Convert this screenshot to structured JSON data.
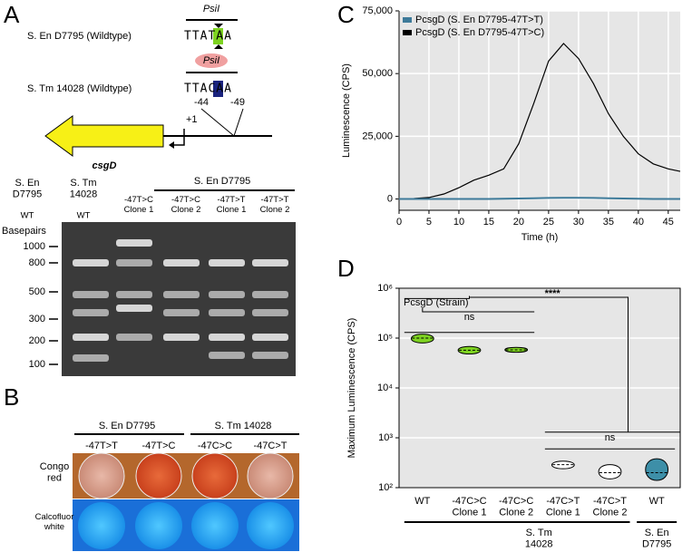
{
  "panel_labels": [
    "A",
    "B",
    "C",
    "D"
  ],
  "panel_a": {
    "enzyme_1": "PsiI",
    "strain_1": "S. En D7795 (Wildtype)",
    "seq_1": "TTATAA",
    "enzyme_2": "PsiI",
    "strain_2": "S. Tm 14028 (Wildtype)",
    "seq_2": "TTACAA",
    "pos_left": "-44",
    "pos_right": "-49",
    "tss": "+1",
    "gene": "csgD"
  },
  "gel": {
    "lanes": [
      "S. En\nD7795",
      "S. Tm\n14028"
    ],
    "lane_sub": [
      "WT",
      "WT"
    ],
    "group": "S. En D7795",
    "clones": [
      "-47T>C\nClone 1",
      "-47T>C\nClone 2",
      "-47T>T\nClone 1",
      "-47T>T\nClone 2"
    ],
    "ylabel": "Basepairs",
    "markers": [
      "1000",
      "800",
      "500",
      "300",
      "200",
      "100"
    ]
  },
  "panel_b": {
    "groups": [
      "S. En D7795",
      "S. Tm 14028"
    ],
    "conditions": [
      "-47T>T",
      "-47T>C",
      "-47C>C",
      "-47C>T"
    ],
    "rows": [
      "Congo\nred",
      "Calcofluor\nwhite"
    ]
  },
  "chart_data": [
    {
      "type": "line",
      "xlabel": "Time (h)",
      "ylabel": "Luminescence (CPS)",
      "x": [
        0,
        2.5,
        5,
        7.5,
        10,
        12.5,
        15,
        17.5,
        20,
        22.5,
        25,
        27.5,
        30,
        32.5,
        35,
        37.5,
        40,
        42.5,
        45,
        47
      ],
      "series": [
        {
          "name": "PcsgD (S. En D7795-47T>T)",
          "color": "#3d7a99",
          "values": [
            0,
            0,
            0,
            0,
            0,
            0,
            0,
            100,
            200,
            300,
            400,
            500,
            500,
            400,
            300,
            200,
            100,
            0,
            0,
            0
          ]
        },
        {
          "name": "PcsgD (S. En D7795-47T>C)",
          "color": "#000000",
          "values": [
            0,
            200,
            600,
            2000,
            4500,
            7500,
            9500,
            12000,
            22000,
            38000,
            55000,
            62000,
            56000,
            46000,
            34000,
            25000,
            18000,
            14000,
            12000,
            11000
          ]
        }
      ],
      "xlim": [
        0,
        47
      ],
      "xticks": [
        0,
        5,
        10,
        15,
        20,
        25,
        30,
        35,
        40,
        45
      ],
      "ylim": [
        -4500,
        75000
      ],
      "yticks": [
        0,
        {
          "value": 25000,
          "label": "25,000"
        },
        {
          "value": 50000,
          "label": "50,000"
        },
        {
          "value": 75000,
          "label": "75,000"
        }
      ],
      "grid": true,
      "legend": "top-left"
    },
    {
      "type": "violin",
      "ylabel": "Maximum Luminescence (CPS)",
      "inner_label": "PcsgD (Strain)",
      "categories": [
        "WT",
        "-47C>C\nClone 1",
        "-47C>C\nClone 2",
        "-47C>T\nClone 1",
        "-47C>T\nClone 2",
        "WT"
      ],
      "values": [
        100000,
        57000,
        58000,
        290,
        200,
        200
      ],
      "min": [
        80000,
        48000,
        52000,
        240,
        150,
        140
      ],
      "max": [
        120000,
        68000,
        65000,
        340,
        290,
        380
      ],
      "colors": [
        "#7ed321",
        "#7ed321",
        "#7ed321",
        "#ffffff",
        "#ffffff",
        "#3d8fa8"
      ],
      "groups": [
        "S. Tm\n14028",
        "S. En\nD7795"
      ],
      "annotations": [
        "****",
        "ns",
        "ns"
      ],
      "log_scale": true,
      "ylim": [
        100,
        1000000
      ],
      "yticks": [
        {
          "value": 100,
          "label": "10²"
        },
        {
          "value": 1000,
          "label": "10³"
        },
        {
          "value": 10000,
          "label": "10⁴"
        },
        {
          "value": 100000,
          "label": "10⁵"
        },
        {
          "value": 1000000,
          "label": "10⁶"
        }
      ],
      "grid": true
    }
  ]
}
